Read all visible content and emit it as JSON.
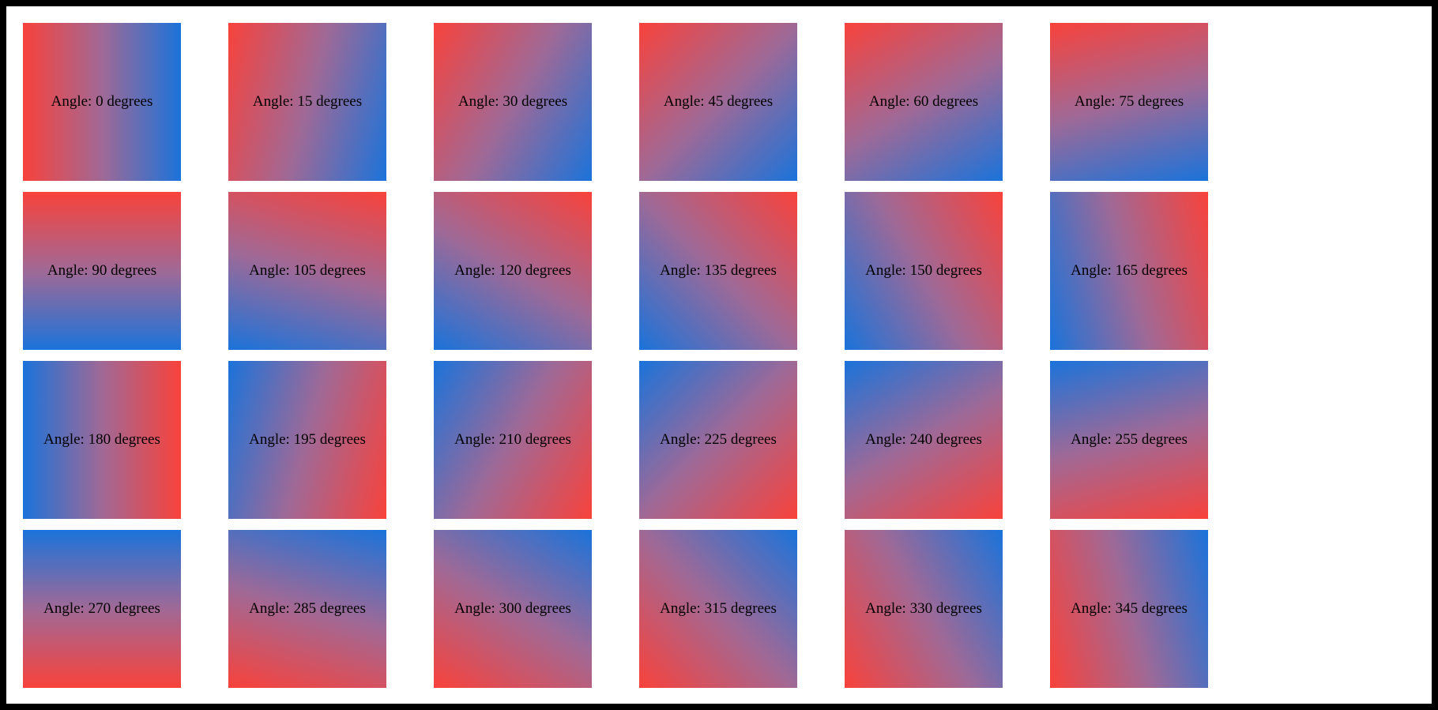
{
  "page": {
    "background_color": "#ffffff",
    "frame_color": "#000000"
  },
  "gradient": {
    "start_color": "#f8423b",
    "mid_color": "#a06996",
    "end_color": "#1b73da",
    "description": "linear gradient from red to blue; label angle 0 = red on left, blue on right; direction rotates clockwise with angle"
  },
  "tiles": [
    {
      "angle": 0,
      "label": "Angle: 0 degrees"
    },
    {
      "angle": 15,
      "label": "Angle: 15 degrees"
    },
    {
      "angle": 30,
      "label": "Angle: 30 degrees"
    },
    {
      "angle": 45,
      "label": "Angle: 45 degrees"
    },
    {
      "angle": 60,
      "label": "Angle: 60 degrees"
    },
    {
      "angle": 75,
      "label": "Angle: 75 degrees"
    },
    {
      "angle": 90,
      "label": "Angle: 90 degrees"
    },
    {
      "angle": 105,
      "label": "Angle: 105 degrees"
    },
    {
      "angle": 120,
      "label": "Angle: 120 degrees"
    },
    {
      "angle": 135,
      "label": "Angle: 135 degrees"
    },
    {
      "angle": 150,
      "label": "Angle: 150 degrees"
    },
    {
      "angle": 165,
      "label": "Angle: 165 degrees"
    },
    {
      "angle": 180,
      "label": "Angle: 180 degrees"
    },
    {
      "angle": 195,
      "label": "Angle: 195 degrees"
    },
    {
      "angle": 210,
      "label": "Angle: 210 degrees"
    },
    {
      "angle": 225,
      "label": "Angle: 225 degrees"
    },
    {
      "angle": 240,
      "label": "Angle: 240 degrees"
    },
    {
      "angle": 255,
      "label": "Angle: 255 degrees"
    },
    {
      "angle": 270,
      "label": "Angle: 270 degrees"
    },
    {
      "angle": 285,
      "label": "Angle: 285 degrees"
    },
    {
      "angle": 300,
      "label": "Angle: 300 degrees"
    },
    {
      "angle": 315,
      "label": "Angle: 315 degrees"
    },
    {
      "angle": 330,
      "label": "Angle: 330 degrees"
    },
    {
      "angle": 345,
      "label": "Angle: 345 degrees"
    }
  ]
}
